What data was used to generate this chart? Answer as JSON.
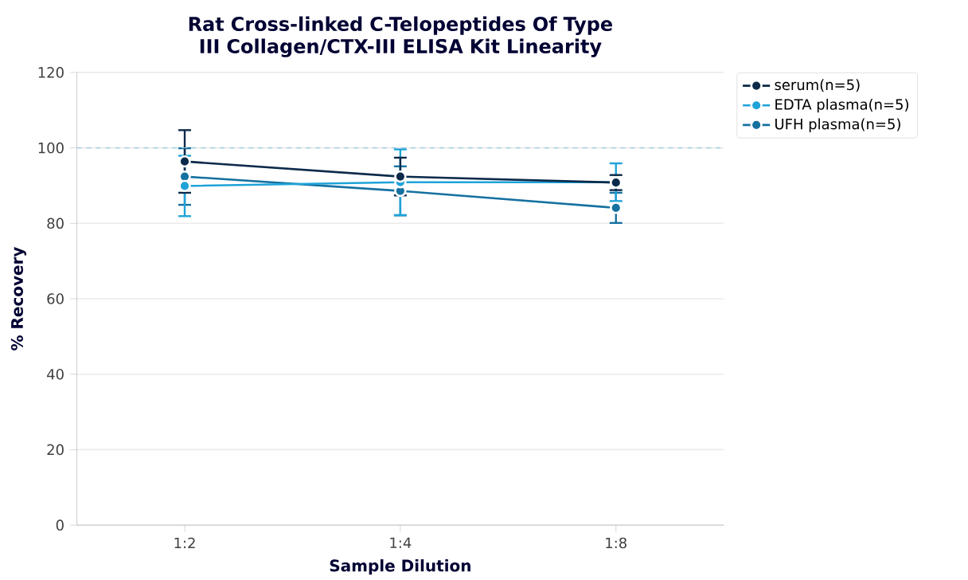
{
  "chart_data": {
    "type": "line",
    "title": "Rat Cross-linked C-Telopeptides Of Type III Collagen/CTX-III ELISA Kit Linearity",
    "xlabel": "Sample Dilution",
    "ylabel": "% Recovery",
    "categories": [
      "1:2",
      "1:4",
      "1:8"
    ],
    "series": [
      {
        "name": "serum(n=5)",
        "color": "#0b2a4a",
        "values": [
          96.4,
          92.4,
          90.8
        ],
        "errors": [
          8.3,
          5,
          2
        ]
      },
      {
        "name": "EDTA plasma(n=5)",
        "color": "#1fa3d9",
        "values": [
          89.9,
          90.9,
          90.9
        ],
        "errors": [
          8,
          8.7,
          5
        ]
      },
      {
        "name": "UFH plasma(n=5)",
        "color": "#1571a0",
        "values": [
          92.4,
          88.6,
          84.1
        ],
        "errors": [
          7.5,
          6.5,
          4
        ]
      }
    ],
    "ylim": [
      0,
      120
    ],
    "yticks": [
      0,
      20,
      40,
      60,
      80,
      100,
      120
    ],
    "ref_lines": [
      {
        "axis": "y",
        "value": 100,
        "color": "#8ec9dc",
        "line_style": "dashed"
      }
    ],
    "grid": "y",
    "legend": "top right",
    "marker": "circle",
    "line_style": "solid"
  }
}
